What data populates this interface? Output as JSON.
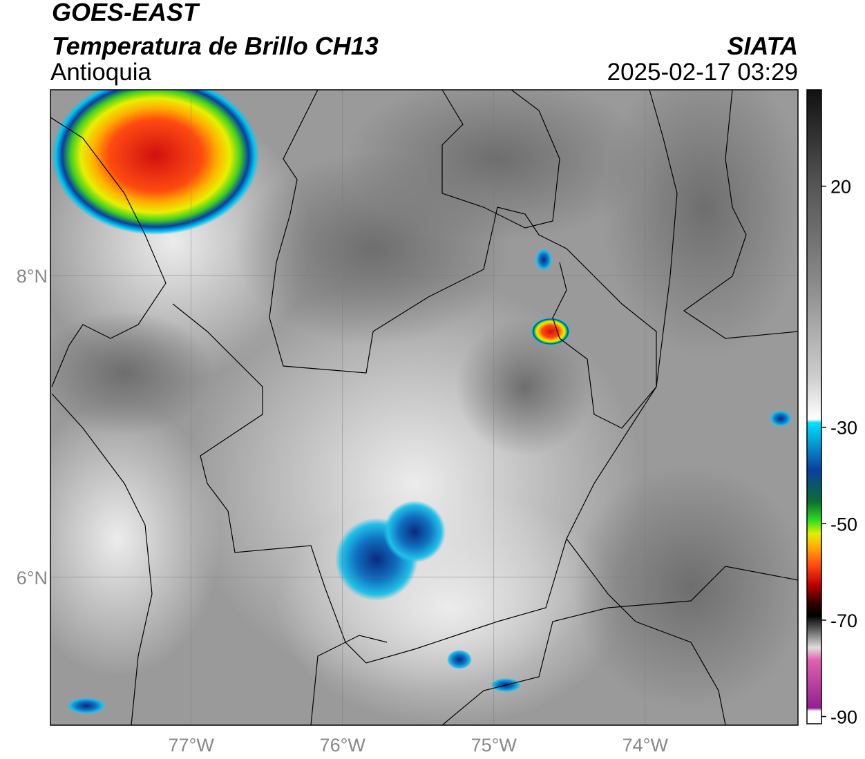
{
  "header": {
    "title": "GOES-EAST",
    "subtitle": "Temperatura de Brillo CH13",
    "region": "Antioquia",
    "source": "SIATA",
    "datetime": "2025-02-17 03:29"
  },
  "map": {
    "xlim": [
      -77.93,
      -72.99
    ],
    "ylim": [
      5.02,
      9.23
    ],
    "xticks": [
      {
        "value": -77,
        "label": "77°W"
      },
      {
        "value": -76,
        "label": "76°W"
      },
      {
        "value": -75,
        "label": "75°W"
      },
      {
        "value": -74,
        "label": "74°W"
      }
    ],
    "yticks": [
      {
        "value": 8,
        "label": "8°N"
      },
      {
        "value": 6,
        "label": "6°N"
      }
    ]
  },
  "colorbar": {
    "lim": [
      -91.5,
      40
    ],
    "ticks": [
      20,
      -30,
      -50,
      -70,
      -90
    ]
  }
}
